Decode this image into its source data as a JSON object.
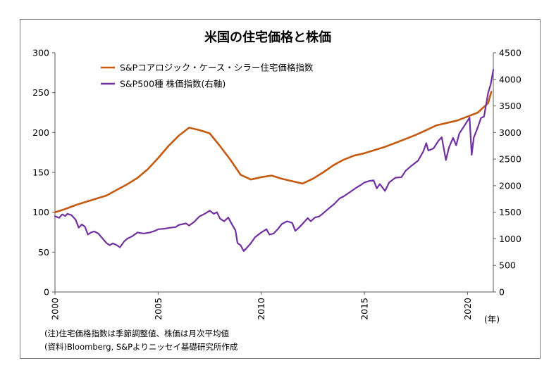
{
  "chart_data": {
    "type": "line",
    "title": "米国の住宅価格と株価",
    "x_axis": {
      "range": [
        2000,
        2021.25
      ],
      "ticks": [
        2000,
        2005,
        2010,
        2015,
        2020
      ],
      "unit_label": "(年)"
    },
    "y_left": {
      "range": [
        0,
        300
      ],
      "ticks": [
        0,
        50,
        100,
        150,
        200,
        250,
        300
      ]
    },
    "y_right": {
      "range": [
        0,
        4500
      ],
      "ticks": [
        0,
        500,
        1000,
        1500,
        2000,
        2500,
        3000,
        3500,
        4000,
        4500
      ]
    },
    "grid": false,
    "legend_position": "top-left",
    "series": [
      {
        "name": "S&Pコアロジック・ケース・シラー住宅価格指数",
        "axis": "left",
        "color": "#c55a11",
        "points": [
          [
            2000.0,
            100
          ],
          [
            2000.5,
            104
          ],
          [
            2001.0,
            109
          ],
          [
            2001.5,
            113
          ],
          [
            2002.0,
            117
          ],
          [
            2002.5,
            121
          ],
          [
            2003.0,
            128
          ],
          [
            2003.5,
            135
          ],
          [
            2004.0,
            143
          ],
          [
            2004.5,
            154
          ],
          [
            2005.0,
            168
          ],
          [
            2005.5,
            183
          ],
          [
            2006.0,
            196
          ],
          [
            2006.5,
            206
          ],
          [
            2007.0,
            203
          ],
          [
            2007.5,
            199
          ],
          [
            2008.0,
            183
          ],
          [
            2008.5,
            166
          ],
          [
            2009.0,
            147
          ],
          [
            2009.5,
            141
          ],
          [
            2010.0,
            144
          ],
          [
            2010.5,
            146
          ],
          [
            2011.0,
            142
          ],
          [
            2011.5,
            139
          ],
          [
            2012.0,
            136
          ],
          [
            2012.5,
            142
          ],
          [
            2013.0,
            150
          ],
          [
            2013.5,
            159
          ],
          [
            2014.0,
            166
          ],
          [
            2014.5,
            171
          ],
          [
            2015.0,
            174
          ],
          [
            2015.5,
            178
          ],
          [
            2016.0,
            182
          ],
          [
            2016.5,
            187
          ],
          [
            2017.0,
            192
          ],
          [
            2017.5,
            197
          ],
          [
            2018.0,
            203
          ],
          [
            2018.5,
            209
          ],
          [
            2019.0,
            212
          ],
          [
            2019.5,
            215
          ],
          [
            2020.0,
            220
          ],
          [
            2020.5,
            225
          ],
          [
            2021.0,
            237
          ],
          [
            2021.15,
            251
          ]
        ]
      },
      {
        "name": "S&P500種 株価指数(右軸)",
        "axis": "right",
        "color": "#7030a0",
        "points": [
          [
            2000.0,
            1425
          ],
          [
            2000.2,
            1395
          ],
          [
            2000.35,
            1460
          ],
          [
            2000.5,
            1430
          ],
          [
            2000.6,
            1470
          ],
          [
            2000.8,
            1445
          ],
          [
            2001.0,
            1360
          ],
          [
            2001.15,
            1210
          ],
          [
            2001.3,
            1270
          ],
          [
            2001.45,
            1230
          ],
          [
            2001.6,
            1080
          ],
          [
            2001.75,
            1120
          ],
          [
            2001.9,
            1140
          ],
          [
            2002.1,
            1100
          ],
          [
            2002.3,
            1010
          ],
          [
            2002.5,
            920
          ],
          [
            2002.65,
            880
          ],
          [
            2002.8,
            915
          ],
          [
            2003.0,
            880
          ],
          [
            2003.15,
            840
          ],
          [
            2003.35,
            950
          ],
          [
            2003.5,
            1000
          ],
          [
            2003.75,
            1050
          ],
          [
            2004.0,
            1120
          ],
          [
            2004.3,
            1100
          ],
          [
            2004.6,
            1120
          ],
          [
            2004.85,
            1150
          ],
          [
            2005.0,
            1180
          ],
          [
            2005.3,
            1190
          ],
          [
            2005.6,
            1210
          ],
          [
            2005.85,
            1220
          ],
          [
            2006.0,
            1260
          ],
          [
            2006.35,
            1290
          ],
          [
            2006.5,
            1250
          ],
          [
            2006.75,
            1320
          ],
          [
            2007.0,
            1420
          ],
          [
            2007.3,
            1480
          ],
          [
            2007.5,
            1530
          ],
          [
            2007.7,
            1470
          ],
          [
            2007.85,
            1500
          ],
          [
            2008.0,
            1380
          ],
          [
            2008.2,
            1330
          ],
          [
            2008.4,
            1400
          ],
          [
            2008.6,
            1260
          ],
          [
            2008.75,
            1160
          ],
          [
            2008.85,
            920
          ],
          [
            2009.0,
            880
          ],
          [
            2009.15,
            770
          ],
          [
            2009.3,
            830
          ],
          [
            2009.5,
            920
          ],
          [
            2009.7,
            1030
          ],
          [
            2009.9,
            1090
          ],
          [
            2010.0,
            1120
          ],
          [
            2010.25,
            1180
          ],
          [
            2010.4,
            1080
          ],
          [
            2010.6,
            1100
          ],
          [
            2010.8,
            1180
          ],
          [
            2011.0,
            1280
          ],
          [
            2011.25,
            1330
          ],
          [
            2011.5,
            1300
          ],
          [
            2011.65,
            1150
          ],
          [
            2011.8,
            1200
          ],
          [
            2012.0,
            1280
          ],
          [
            2012.25,
            1390
          ],
          [
            2012.4,
            1330
          ],
          [
            2012.6,
            1400
          ],
          [
            2012.8,
            1420
          ],
          [
            2013.0,
            1480
          ],
          [
            2013.3,
            1580
          ],
          [
            2013.55,
            1660
          ],
          [
            2013.8,
            1760
          ],
          [
            2014.0,
            1800
          ],
          [
            2014.3,
            1880
          ],
          [
            2014.6,
            1960
          ],
          [
            2014.85,
            2020
          ],
          [
            2015.0,
            2060
          ],
          [
            2015.25,
            2090
          ],
          [
            2015.45,
            2100
          ],
          [
            2015.6,
            1950
          ],
          [
            2015.75,
            2030
          ],
          [
            2016.0,
            1900
          ],
          [
            2016.2,
            2060
          ],
          [
            2016.5,
            2150
          ],
          [
            2016.8,
            2160
          ],
          [
            2017.0,
            2280
          ],
          [
            2017.3,
            2380
          ],
          [
            2017.6,
            2470
          ],
          [
            2017.85,
            2640
          ],
          [
            2018.0,
            2800
          ],
          [
            2018.1,
            2660
          ],
          [
            2018.35,
            2700
          ],
          [
            2018.6,
            2850
          ],
          [
            2018.75,
            2910
          ],
          [
            2018.95,
            2480
          ],
          [
            2019.1,
            2720
          ],
          [
            2019.3,
            2900
          ],
          [
            2019.45,
            2760
          ],
          [
            2019.6,
            2980
          ],
          [
            2019.8,
            3100
          ],
          [
            2020.0,
            3220
          ],
          [
            2020.1,
            3280
          ],
          [
            2020.2,
            2580
          ],
          [
            2020.3,
            2900
          ],
          [
            2020.5,
            3100
          ],
          [
            2020.65,
            3270
          ],
          [
            2020.8,
            3300
          ],
          [
            2021.0,
            3750
          ],
          [
            2021.12,
            3900
          ],
          [
            2021.25,
            4180
          ]
        ]
      }
    ]
  },
  "notes": [
    "(注)住宅価格指数は季節調整値、株価は月次平均値",
    "(資料)Bloomberg, S&Pよりニッセイ基礎研究所作成"
  ]
}
